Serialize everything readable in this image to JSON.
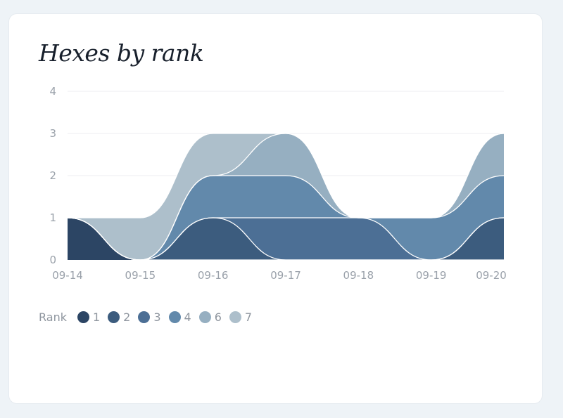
{
  "chart_data": {
    "type": "area",
    "stacked": true,
    "title": "Hexes by rank",
    "x": [
      "09-14",
      "09-15",
      "09-16",
      "09-17",
      "09-18",
      "09-19",
      "09-20"
    ],
    "ylim": [
      0,
      4
    ],
    "yticks": [
      "0",
      "1",
      "2",
      "3",
      "4"
    ],
    "grid": true,
    "legend_title": "Rank",
    "legend_position": "bottom-left",
    "series": [
      {
        "name": "1",
        "color": "#2c4564",
        "values": [
          1,
          0,
          0,
          0,
          0,
          0,
          0
        ]
      },
      {
        "name": "2",
        "color": "#3c5c7e",
        "values": [
          0,
          0,
          1,
          0,
          0,
          0,
          1
        ]
      },
      {
        "name": "3",
        "color": "#4c6f95",
        "values": [
          0,
          0,
          0,
          1,
          1,
          0,
          0
        ]
      },
      {
        "name": "4",
        "color": "#6289ab",
        "values": [
          0,
          0,
          1,
          1,
          0,
          1,
          1
        ]
      },
      {
        "name": "6",
        "color": "#96afc1",
        "values": [
          0,
          0,
          0,
          1,
          0,
          0,
          1
        ]
      },
      {
        "name": "7",
        "color": "#adbfcb",
        "values": [
          0,
          1,
          1,
          0,
          0,
          0,
          0
        ]
      }
    ]
  }
}
